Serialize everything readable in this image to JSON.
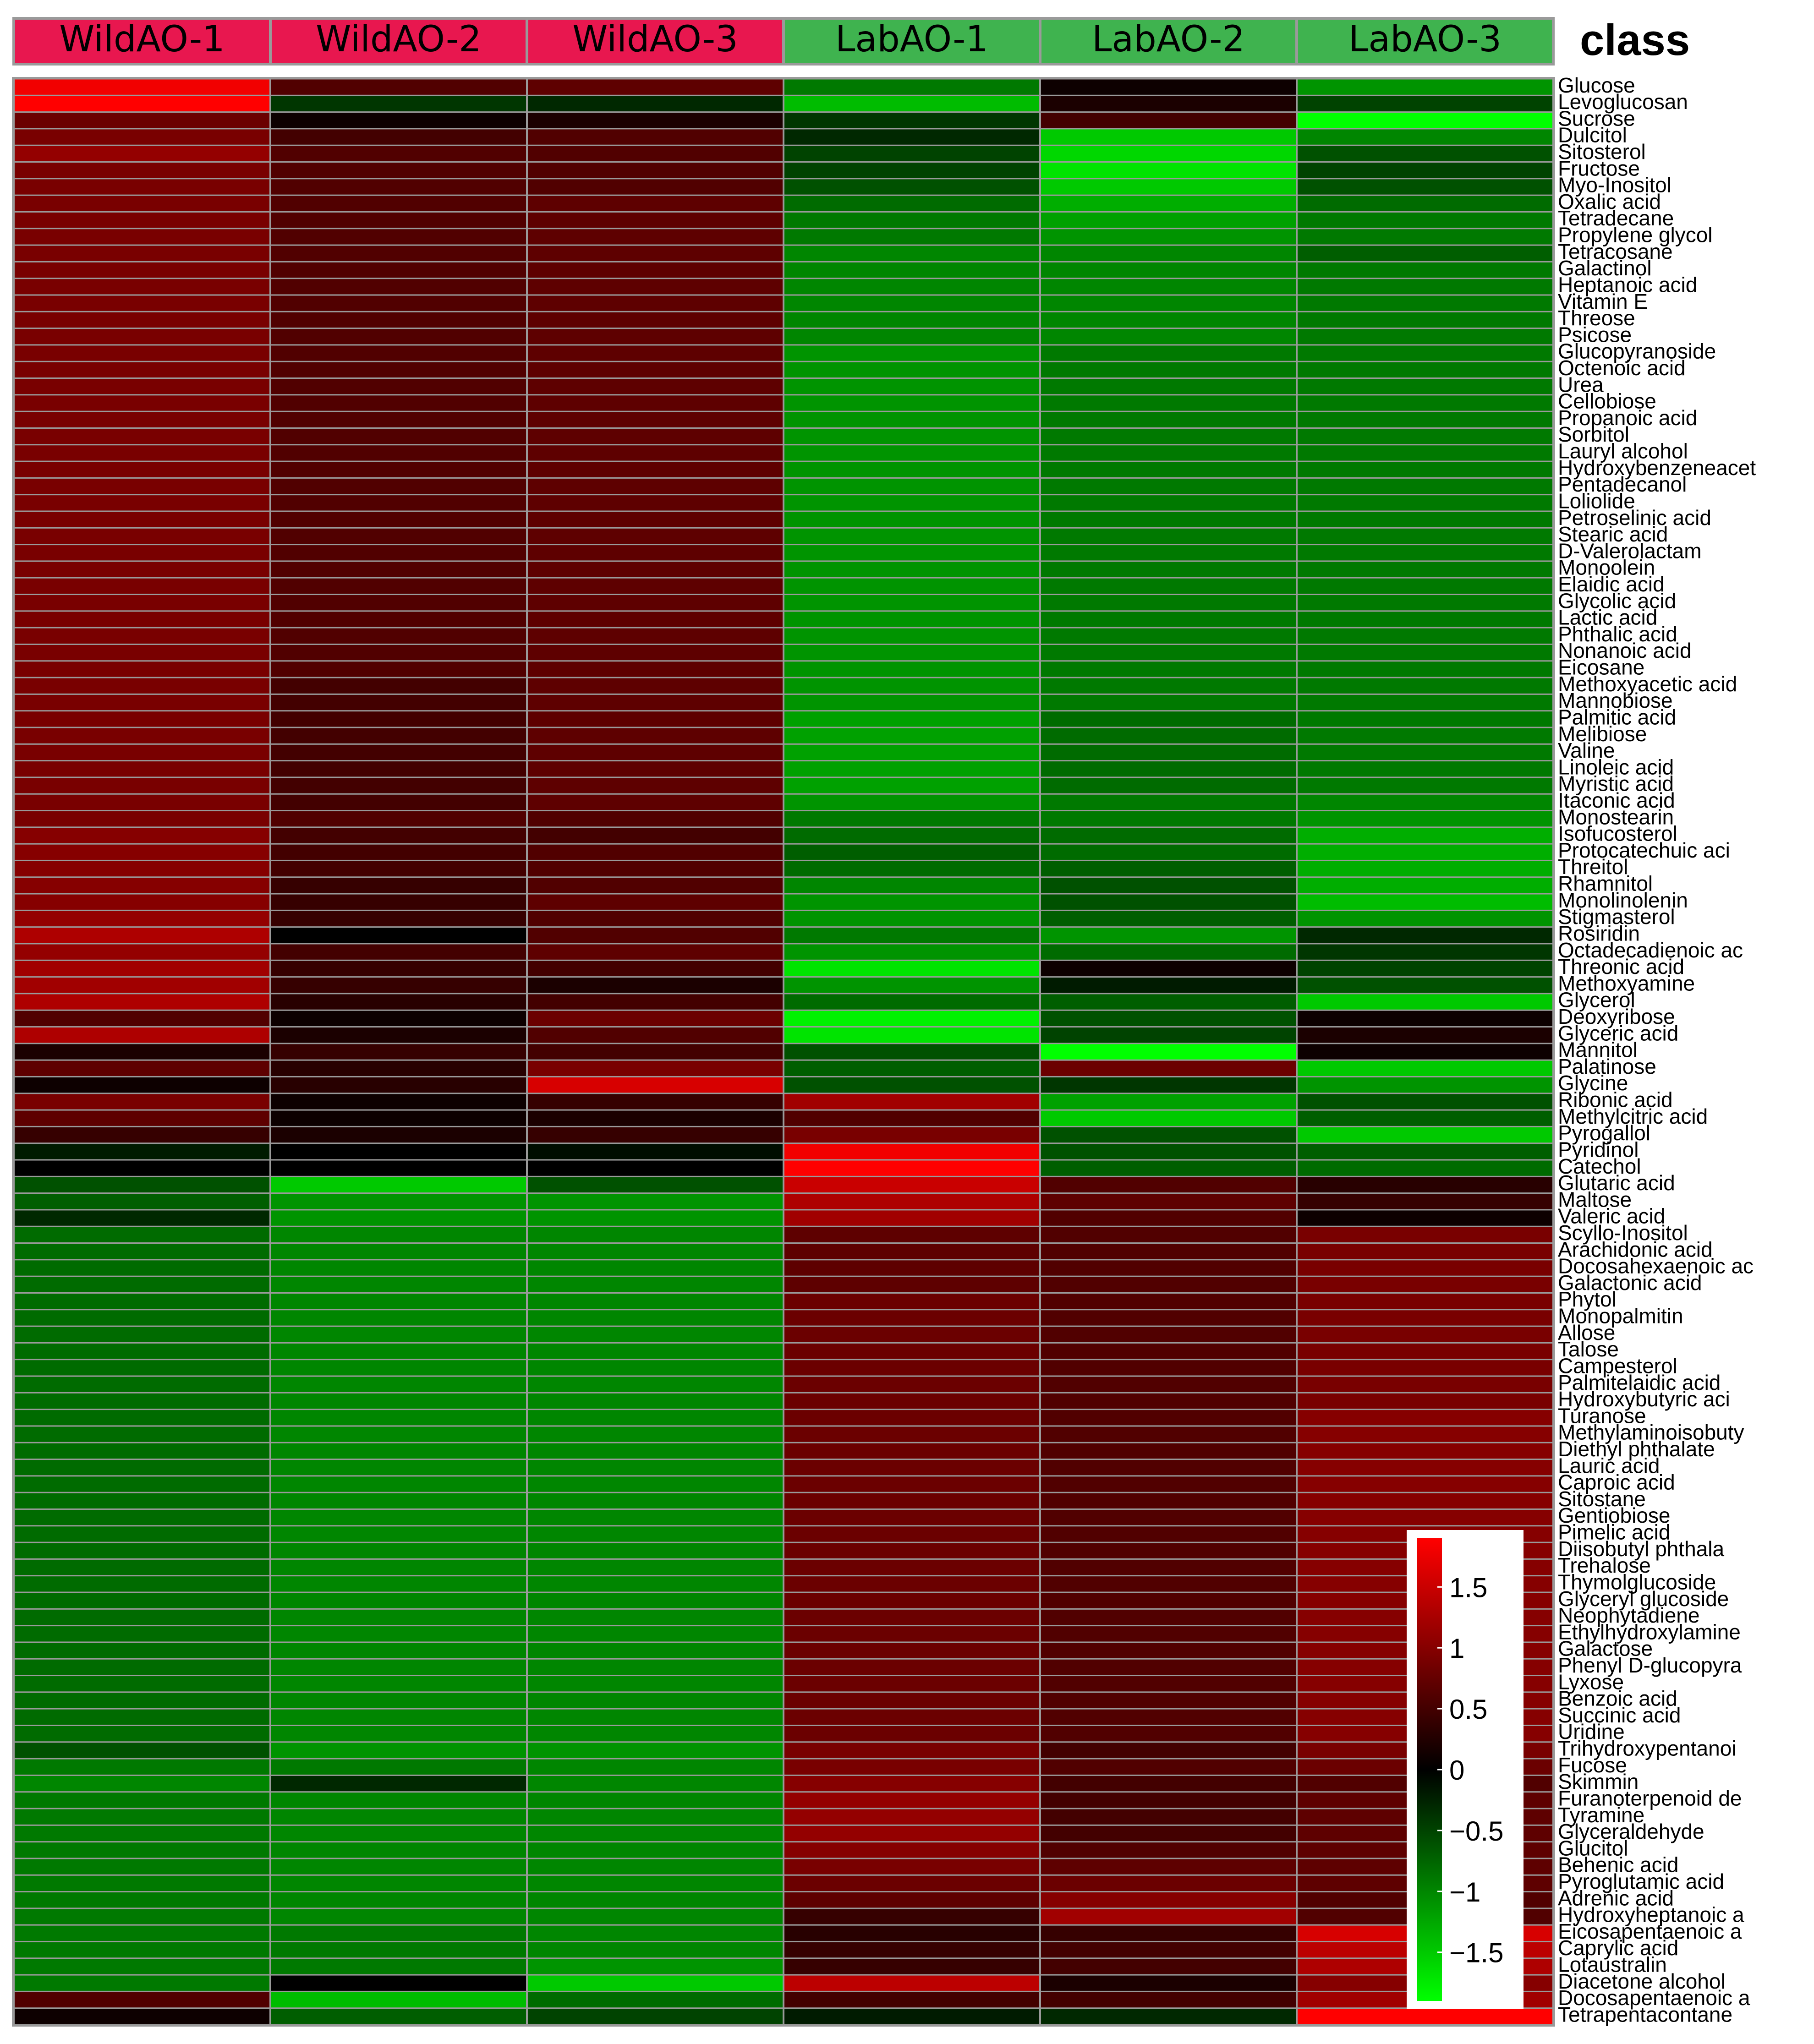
{
  "chart_data": {
    "type": "heatmap",
    "title": "",
    "legend_title": "class",
    "columns": [
      {
        "name": "WildAO-1",
        "group_color": "#E8174F"
      },
      {
        "name": "WildAO-2",
        "group_color": "#E8174F"
      },
      {
        "name": "WildAO-3",
        "group_color": "#E8174F"
      },
      {
        "name": "LabAO-1",
        "group_color": "#3FB34F"
      },
      {
        "name": "LabAO-2",
        "group_color": "#3FB34F"
      },
      {
        "name": "LabAO-3",
        "group_color": "#3FB34F"
      }
    ],
    "rows": [
      "Glucose",
      "Levoglucosan",
      "Sucrose",
      "Dulcitol",
      "Sitosterol",
      "Fructose",
      "Myo-Inositol",
      "Oxalic acid",
      "Tetradecane",
      "Propylene glycol",
      "Tetracosane",
      "Galactinol",
      "Heptanoic acid",
      "Vitamin E",
      "Threose",
      "Psicose",
      "Glucopyranoside",
      "Octenoic acid",
      "Urea",
      "Cellobiose",
      "Propanoic acid",
      "Sorbitol",
      "Lauryl alcohol",
      "Hydroxybenzeneacet",
      "Pentadecanol",
      "Loliolide",
      "Petroselinic acid",
      "Stearic acid",
      "D-Valerolactam",
      "Monoolein",
      "Elaidic acid",
      "Glycolic acid",
      "Lactic acid",
      "Phthalic acid",
      "Nonanoic acid",
      "Eicosane",
      "Methoxyacetic acid",
      "Mannobiose",
      "Palmitic acid",
      "Melibiose",
      "Valine",
      "Linoleic acid",
      "Myristic acid",
      "Itaconic acid",
      "Monostearin",
      "Isofucosterol",
      "Protocatechuic aci",
      "Threitol",
      "Rhamnitol",
      "Monolinolenin",
      "Stigmasterol",
      "Rosiridin",
      "Octadecadienoic ac",
      "Threonic acid",
      "Methoxyamine",
      "Glycerol",
      "Deoxyribose",
      "Glyceric acid",
      "Mannitol",
      "Palatinose",
      "Glycine",
      "Ribonic acid",
      "Methylcitric acid",
      "Pyrogallol",
      "Pyridinol",
      "Catechol",
      "Glutaric acid",
      "Maltose",
      "Valeric acid",
      "Scyllo-Inositol",
      "Arachidonic acid",
      "Docosahexaenoic ac",
      "Galactonic acid",
      "Phytol",
      "Monopalmitin",
      "Allose",
      "Talose",
      "Campesterol",
      "Palmitelaidic acid",
      "Hydroxybutyric aci",
      "Turanose",
      "Methylaminoisobuty",
      "Diethyl phthalate",
      "Lauric acid",
      "Caproic acid",
      "Sitostane",
      "Gentiobiose",
      "Pimelic acid",
      "Diisobutyl phthala",
      "Trehalose",
      "Thymolglucoside",
      "Glyceryl glucoside",
      "Neophytadiene",
      "Ethylhydroxylamine",
      "Galactose",
      "Phenyl D-glucopyra",
      "Lyxose",
      "Benzoic acid",
      "Succinic acid",
      "Uridine",
      "Trihydroxypentanoi",
      "Fucose",
      "Skimmin",
      "Furanoterpenoid de",
      "Tyramine",
      "Glyceraldehyde",
      "Glucitol",
      "Behenic acid",
      "Pyroglutamic acid",
      "Adrenic acid",
      "Hydroxyheptanoic a",
      "Eicosapentaenoic a",
      "Caprylic acid",
      "Lotaustralin",
      "Diacetone alcohol",
      "Docosapentaenoic a",
      "Tetrapentacontane"
    ],
    "values": [
      [
        1.8,
        0.6,
        0.7,
        -0.9,
        0.1,
        -1.1
      ],
      [
        1.9,
        -0.4,
        -0.3,
        -1.4,
        0.2,
        -0.5
      ],
      [
        0.8,
        0.1,
        0.2,
        -0.4,
        0.5,
        -1.9
      ],
      [
        0.9,
        0.5,
        0.6,
        -0.3,
        -1.5,
        -1.0
      ],
      [
        1.1,
        0.6,
        0.6,
        -0.5,
        -1.6,
        -0.6
      ],
      [
        0.9,
        0.6,
        0.6,
        -0.5,
        -1.7,
        -0.5
      ],
      [
        0.9,
        0.6,
        0.6,
        -0.6,
        -1.5,
        -0.6
      ],
      [
        0.9,
        0.6,
        0.7,
        -0.8,
        -1.3,
        -0.8
      ],
      [
        0.9,
        0.6,
        0.7,
        -0.9,
        -1.2,
        -0.9
      ],
      [
        0.9,
        0.6,
        0.7,
        -0.9,
        -1.1,
        -0.9
      ],
      [
        0.9,
        0.6,
        0.7,
        -1.0,
        -1.0,
        -0.7
      ],
      [
        0.9,
        0.6,
        0.7,
        -1.0,
        -1.0,
        -0.9
      ],
      [
        0.9,
        0.6,
        0.7,
        -1.0,
        -1.0,
        -0.9
      ],
      [
        0.9,
        0.6,
        0.7,
        -1.0,
        -1.0,
        -0.9
      ],
      [
        0.9,
        0.6,
        0.7,
        -1.0,
        -1.0,
        -0.9
      ],
      [
        0.9,
        0.6,
        0.7,
        -1.0,
        -1.0,
        -0.9
      ],
      [
        0.9,
        0.6,
        0.7,
        -1.1,
        -0.9,
        -0.9
      ],
      [
        0.9,
        0.6,
        0.7,
        -1.1,
        -0.9,
        -0.9
      ],
      [
        0.9,
        0.6,
        0.7,
        -1.1,
        -0.9,
        -0.9
      ],
      [
        0.9,
        0.6,
        0.7,
        -1.1,
        -0.9,
        -0.9
      ],
      [
        0.9,
        0.6,
        0.7,
        -1.1,
        -0.9,
        -0.9
      ],
      [
        0.9,
        0.6,
        0.7,
        -1.1,
        -0.9,
        -0.9
      ],
      [
        0.9,
        0.6,
        0.7,
        -1.1,
        -0.9,
        -0.9
      ],
      [
        0.9,
        0.6,
        0.7,
        -1.1,
        -0.9,
        -0.9
      ],
      [
        0.9,
        0.6,
        0.7,
        -1.1,
        -0.9,
        -0.9
      ],
      [
        0.9,
        0.6,
        0.7,
        -1.1,
        -0.9,
        -0.9
      ],
      [
        0.9,
        0.6,
        0.7,
        -1.1,
        -0.9,
        -0.9
      ],
      [
        0.9,
        0.6,
        0.7,
        -1.1,
        -0.9,
        -0.9
      ],
      [
        0.9,
        0.6,
        0.7,
        -1.1,
        -0.9,
        -0.9
      ],
      [
        0.9,
        0.6,
        0.7,
        -1.1,
        -0.9,
        -0.9
      ],
      [
        0.9,
        0.6,
        0.7,
        -1.1,
        -0.9,
        -0.9
      ],
      [
        0.9,
        0.6,
        0.7,
        -1.1,
        -0.9,
        -0.9
      ],
      [
        0.9,
        0.6,
        0.7,
        -1.1,
        -0.9,
        -0.9
      ],
      [
        0.9,
        0.6,
        0.7,
        -1.1,
        -0.9,
        -0.9
      ],
      [
        0.9,
        0.6,
        0.7,
        -1.1,
        -0.9,
        -0.9
      ],
      [
        0.9,
        0.6,
        0.7,
        -1.1,
        -0.9,
        -0.9
      ],
      [
        0.9,
        0.5,
        0.7,
        -1.1,
        -0.9,
        -0.9
      ],
      [
        0.9,
        0.5,
        0.7,
        -1.1,
        -0.9,
        -0.9
      ],
      [
        0.9,
        0.5,
        0.7,
        -1.2,
        -0.8,
        -0.9
      ],
      [
        0.9,
        0.5,
        0.7,
        -1.2,
        -0.8,
        -0.9
      ],
      [
        0.9,
        0.5,
        0.7,
        -1.2,
        -0.8,
        -0.9
      ],
      [
        0.9,
        0.5,
        0.7,
        -1.2,
        -0.8,
        -0.9
      ],
      [
        0.9,
        0.5,
        0.7,
        -1.2,
        -0.8,
        -0.9
      ],
      [
        0.9,
        0.5,
        0.7,
        -1.1,
        -0.9,
        -1.0
      ],
      [
        0.9,
        0.6,
        0.6,
        -0.9,
        -0.9,
        -1.1
      ],
      [
        1.0,
        0.5,
        0.5,
        -0.8,
        -0.8,
        -1.3
      ],
      [
        1.0,
        0.5,
        0.6,
        -0.7,
        -0.8,
        -1.3
      ],
      [
        1.0,
        0.5,
        0.6,
        -0.8,
        -0.7,
        -1.3
      ],
      [
        1.0,
        0.4,
        0.6,
        -1.0,
        -0.6,
        -1.3
      ],
      [
        1.0,
        0.4,
        0.7,
        -1.1,
        -0.6,
        -1.4
      ],
      [
        1.1,
        0.4,
        0.6,
        -1.1,
        -0.7,
        -1.1
      ],
      [
        1.3,
        0.0,
        0.6,
        -0.9,
        -1.1,
        -0.3
      ],
      [
        1.1,
        0.5,
        0.7,
        -1.1,
        -0.8,
        -0.4
      ],
      [
        1.2,
        0.4,
        0.5,
        -1.7,
        0.1,
        -0.5
      ],
      [
        1.2,
        0.4,
        0.2,
        -1.1,
        -0.2,
        -0.6
      ],
      [
        1.3,
        0.3,
        0.5,
        -0.8,
        -0.7,
        -1.5
      ],
      [
        0.6,
        0.1,
        0.8,
        -1.8,
        -0.6,
        0.1
      ],
      [
        1.3,
        0.2,
        0.6,
        -1.7,
        -0.5,
        0.2
      ],
      [
        0.2,
        0.4,
        0.5,
        -0.6,
        -1.9,
        0.1
      ],
      [
        0.7,
        0.3,
        0.9,
        -0.7,
        0.8,
        -1.5
      ],
      [
        0.1,
        0.3,
        1.6,
        -0.6,
        -0.4,
        -1.1
      ],
      [
        0.9,
        0.1,
        0.4,
        1.2,
        -1.2,
        -0.6
      ],
      [
        0.7,
        0.1,
        0.2,
        0.6,
        -1.5,
        -0.7
      ],
      [
        0.4,
        0.2,
        0.4,
        0.9,
        -0.6,
        -1.5
      ],
      [
        -0.2,
        0.0,
        -0.1,
        1.8,
        -0.6,
        -0.7
      ],
      [
        0.0,
        0.0,
        0.0,
        1.9,
        -0.7,
        -0.8
      ],
      [
        -0.6,
        -1.5,
        -0.6,
        1.5,
        0.6,
        0.3
      ],
      [
        -0.7,
        -1.1,
        -1.1,
        1.3,
        0.7,
        0.4
      ],
      [
        -0.3,
        -1.1,
        -1.1,
        1.2,
        0.6,
        0.1
      ],
      [
        -0.8,
        -1.0,
        -1.0,
        0.7,
        0.6,
        0.9
      ],
      [
        -0.8,
        -1.0,
        -1.0,
        0.7,
        0.6,
        0.9
      ],
      [
        -0.8,
        -1.0,
        -1.0,
        0.7,
        0.6,
        0.9
      ],
      [
        -0.8,
        -1.0,
        -1.0,
        0.7,
        0.6,
        0.9
      ],
      [
        -0.8,
        -1.0,
        -1.0,
        0.8,
        0.6,
        0.9
      ],
      [
        -0.8,
        -1.0,
        -1.0,
        0.8,
        0.6,
        0.9
      ],
      [
        -0.8,
        -1.0,
        -1.0,
        0.8,
        0.6,
        0.9
      ],
      [
        -0.8,
        -1.0,
        -1.0,
        0.8,
        0.6,
        0.9
      ],
      [
        -0.8,
        -1.0,
        -1.0,
        0.8,
        0.6,
        0.9
      ],
      [
        -0.8,
        -1.0,
        -1.0,
        0.8,
        0.6,
        0.9
      ],
      [
        -0.8,
        -1.0,
        -1.0,
        0.8,
        0.6,
        0.9
      ],
      [
        -0.8,
        -1.0,
        -1.0,
        0.8,
        0.6,
        1.0
      ],
      [
        -0.8,
        -1.0,
        -1.0,
        0.8,
        0.6,
        1.0
      ],
      [
        -0.8,
        -1.0,
        -1.0,
        0.8,
        0.6,
        1.0
      ],
      [
        -0.8,
        -1.0,
        -1.0,
        0.8,
        0.6,
        1.0
      ],
      [
        -0.8,
        -1.0,
        -1.0,
        0.8,
        0.6,
        1.0
      ],
      [
        -0.8,
        -1.0,
        -1.0,
        0.8,
        0.6,
        1.0
      ],
      [
        -0.8,
        -1.0,
        -1.0,
        0.8,
        0.6,
        1.0
      ],
      [
        -0.8,
        -1.0,
        -1.0,
        0.8,
        0.6,
        1.0
      ],
      [
        -0.8,
        -1.0,
        -1.0,
        0.8,
        0.6,
        1.0
      ],
      [
        -0.8,
        -1.0,
        -1.0,
        0.8,
        0.6,
        1.0
      ],
      [
        -0.8,
        -1.0,
        -1.0,
        0.8,
        0.6,
        1.0
      ],
      [
        -0.8,
        -1.0,
        -1.0,
        0.8,
        0.6,
        1.0
      ],
      [
        -0.8,
        -1.0,
        -1.0,
        0.8,
        0.6,
        1.0
      ],
      [
        -0.8,
        -1.0,
        -1.0,
        0.8,
        0.6,
        1.0
      ],
      [
        -0.8,
        -1.0,
        -1.0,
        0.8,
        0.6,
        1.0
      ],
      [
        -0.8,
        -1.0,
        -1.0,
        0.8,
        0.6,
        1.0
      ],
      [
        -0.8,
        -1.0,
        -1.0,
        0.8,
        0.6,
        1.0
      ],
      [
        -0.8,
        -1.0,
        -1.0,
        0.8,
        0.6,
        1.0
      ],
      [
        -0.8,
        -1.0,
        -1.0,
        0.8,
        0.6,
        1.0
      ],
      [
        -0.8,
        -1.0,
        -1.0,
        0.8,
        0.6,
        1.0
      ],
      [
        -0.6,
        -1.1,
        -1.1,
        0.9,
        0.5,
        0.9
      ],
      [
        -0.9,
        -0.9,
        -1.0,
        0.9,
        0.6,
        0.8
      ],
      [
        -1.0,
        -0.3,
        -1.0,
        1.0,
        0.5,
        0.6
      ],
      [
        -0.9,
        -1.0,
        -1.0,
        1.1,
        0.5,
        0.7
      ],
      [
        -0.9,
        -1.0,
        -1.0,
        1.1,
        0.5,
        0.7
      ],
      [
        -0.9,
        -1.0,
        -1.0,
        1.1,
        0.5,
        0.7
      ],
      [
        -0.9,
        -1.0,
        -1.0,
        1.0,
        0.6,
        0.7
      ],
      [
        -0.9,
        -1.0,
        -1.0,
        0.9,
        0.7,
        0.7
      ],
      [
        -0.9,
        -1.0,
        -1.0,
        0.8,
        0.8,
        0.7
      ],
      [
        -0.9,
        -1.0,
        -1.0,
        0.7,
        1.0,
        0.6
      ],
      [
        -0.9,
        -1.0,
        -1.0,
        0.4,
        1.2,
        0.6
      ],
      [
        -0.9,
        -0.9,
        -1.0,
        0.3,
        0.4,
        1.6
      ],
      [
        -0.9,
        -0.9,
        -1.0,
        0.4,
        0.5,
        1.4
      ],
      [
        -0.9,
        -0.9,
        -1.1,
        0.4,
        0.5,
        1.3
      ],
      [
        -0.9,
        0.0,
        -1.5,
        1.4,
        0.2,
        1.0
      ],
      [
        0.6,
        -1.4,
        -0.8,
        0.5,
        0.5,
        1.2
      ],
      [
        0.1,
        -0.7,
        -0.5,
        -0.2,
        -0.3,
        1.9
      ]
    ],
    "color_scale": {
      "low": "#00FF00",
      "mid": "#000000",
      "high": "#FF0000",
      "min": -1.9,
      "max": 1.9
    },
    "colorbar_ticks": [
      "1.5",
      "1",
      "0.5",
      "0",
      "−0.5",
      "−1",
      "−1.5"
    ],
    "colorbar_tick_values": [
      1.5,
      1,
      0.5,
      0,
      -0.5,
      -1,
      -1.5
    ],
    "legend_position": "bottom-right"
  }
}
